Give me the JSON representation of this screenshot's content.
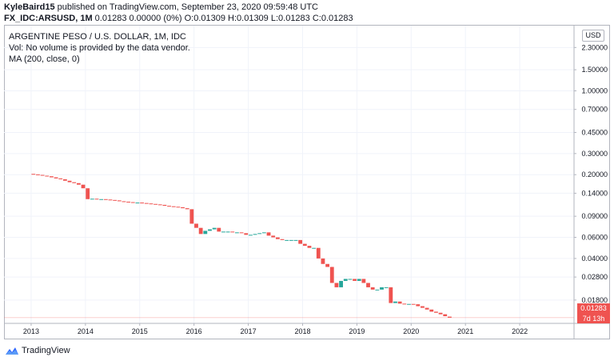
{
  "header": {
    "author": "KyleBaird15",
    "published_text": " published on TradingView.com, September 23, 2020 09:59:48 UTC",
    "symbol": "FX_IDC:ARSUSD, 1M",
    "ohlc_text": " 0.01283 0.00000 (0%) O:0.01309 H:0.01309 L:0.01283 C:0.01283"
  },
  "legend": {
    "title": "ARGENTINE PESO / U.S. DOLLAR, 1M, IDC",
    "volume_note": "Vol: No volume is provided by the data vendor.",
    "ma_label": "MA (200, close, 0)"
  },
  "price_axis": {
    "currency_badge": "USD",
    "last_price_label": "0.01283",
    "countdown_label": "7d 13h",
    "ticks": [
      "2.30000",
      "1.50000",
      "1.00000",
      "0.70000",
      "0.45000",
      "0.30000",
      "0.20000",
      "0.14000",
      "0.09000",
      "0.06000",
      "0.04000",
      "0.02800",
      "0.01800"
    ]
  },
  "time_axis": {
    "labels": [
      "2013",
      "2014",
      "2015",
      "2016",
      "2017",
      "2018",
      "2019",
      "2020",
      "2021",
      "2022"
    ]
  },
  "footer": {
    "brand": "TradingView"
  },
  "colors": {
    "up": "#26a69a",
    "down": "#ef5350",
    "grid": "#f0f3fa",
    "axis_line": "#b2b5be",
    "text": "#131722"
  },
  "chart_data": {
    "type": "candlestick",
    "title": "ARGENTINE PESO / U.S. DOLLAR, 1M, IDC",
    "scale": "log",
    "ylim": [
      0.0115,
      3.5
    ],
    "xlim": [
      "2012-07",
      "2022-12"
    ],
    "last_price": 0.01283,
    "series": [
      {
        "name": "ARSUSD",
        "candles": [
          {
            "t": "2013-01",
            "o": 0.203,
            "c": 0.201
          },
          {
            "t": "2013-02",
            "o": 0.201,
            "c": 0.199
          },
          {
            "t": "2013-03",
            "o": 0.199,
            "c": 0.196
          },
          {
            "t": "2013-04",
            "o": 0.196,
            "c": 0.194
          },
          {
            "t": "2013-05",
            "o": 0.194,
            "c": 0.19
          },
          {
            "t": "2013-06",
            "o": 0.19,
            "c": 0.186
          },
          {
            "t": "2013-07",
            "o": 0.186,
            "c": 0.183
          },
          {
            "t": "2013-08",
            "o": 0.183,
            "c": 0.178
          },
          {
            "t": "2013-09",
            "o": 0.178,
            "c": 0.173
          },
          {
            "t": "2013-10",
            "o": 0.173,
            "c": 0.17
          },
          {
            "t": "2013-11",
            "o": 0.17,
            "c": 0.165
          },
          {
            "t": "2013-12",
            "o": 0.165,
            "c": 0.154
          },
          {
            "t": "2014-01",
            "o": 0.154,
            "c": 0.125
          },
          {
            "t": "2014-02",
            "o": 0.125,
            "c": 0.126
          },
          {
            "t": "2014-03",
            "o": 0.126,
            "c": 0.125
          },
          {
            "t": "2014-04",
            "o": 0.125,
            "c": 0.125
          },
          {
            "t": "2014-05",
            "o": 0.125,
            "c": 0.124
          },
          {
            "t": "2014-06",
            "o": 0.124,
            "c": 0.123
          },
          {
            "t": "2014-07",
            "o": 0.123,
            "c": 0.122
          },
          {
            "t": "2014-08",
            "o": 0.122,
            "c": 0.12
          },
          {
            "t": "2014-09",
            "o": 0.12,
            "c": 0.119
          },
          {
            "t": "2014-10",
            "o": 0.119,
            "c": 0.118
          },
          {
            "t": "2014-11",
            "o": 0.118,
            "c": 0.117
          },
          {
            "t": "2014-12",
            "o": 0.117,
            "c": 0.117
          },
          {
            "t": "2015-01",
            "o": 0.117,
            "c": 0.116
          },
          {
            "t": "2015-02",
            "o": 0.116,
            "c": 0.115
          },
          {
            "t": "2015-03",
            "o": 0.115,
            "c": 0.114
          },
          {
            "t": "2015-04",
            "o": 0.114,
            "c": 0.113
          },
          {
            "t": "2015-05",
            "o": 0.113,
            "c": 0.112
          },
          {
            "t": "2015-06",
            "o": 0.112,
            "c": 0.11
          },
          {
            "t": "2015-07",
            "o": 0.11,
            "c": 0.109
          },
          {
            "t": "2015-08",
            "o": 0.109,
            "c": 0.108
          },
          {
            "t": "2015-09",
            "o": 0.108,
            "c": 0.107
          },
          {
            "t": "2015-10",
            "o": 0.107,
            "c": 0.105
          },
          {
            "t": "2015-11",
            "o": 0.105,
            "c": 0.103
          },
          {
            "t": "2015-12",
            "o": 0.103,
            "c": 0.078
          },
          {
            "t": "2016-01",
            "o": 0.078,
            "c": 0.072
          },
          {
            "t": "2016-02",
            "o": 0.072,
            "c": 0.064
          },
          {
            "t": "2016-03",
            "o": 0.064,
            "c": 0.068
          },
          {
            "t": "2016-04",
            "o": 0.068,
            "c": 0.07
          },
          {
            "t": "2016-05",
            "o": 0.07,
            "c": 0.072
          },
          {
            "t": "2016-06",
            "o": 0.072,
            "c": 0.067
          },
          {
            "t": "2016-07",
            "o": 0.067,
            "c": 0.067
          },
          {
            "t": "2016-08",
            "o": 0.067,
            "c": 0.067
          },
          {
            "t": "2016-09",
            "o": 0.067,
            "c": 0.066
          },
          {
            "t": "2016-10",
            "o": 0.066,
            "c": 0.066
          },
          {
            "t": "2016-11",
            "o": 0.066,
            "c": 0.065
          },
          {
            "t": "2016-12",
            "o": 0.065,
            "c": 0.063
          },
          {
            "t": "2017-01",
            "o": 0.063,
            "c": 0.063
          },
          {
            "t": "2017-02",
            "o": 0.063,
            "c": 0.064
          },
          {
            "t": "2017-03",
            "o": 0.064,
            "c": 0.065
          },
          {
            "t": "2017-04",
            "o": 0.065,
            "c": 0.066
          },
          {
            "t": "2017-05",
            "o": 0.066,
            "c": 0.062
          },
          {
            "t": "2017-06",
            "o": 0.062,
            "c": 0.06
          },
          {
            "t": "2017-07",
            "o": 0.06,
            "c": 0.058
          },
          {
            "t": "2017-08",
            "o": 0.058,
            "c": 0.057
          },
          {
            "t": "2017-09",
            "o": 0.057,
            "c": 0.057
          },
          {
            "t": "2017-10",
            "o": 0.057,
            "c": 0.057
          },
          {
            "t": "2017-11",
            "o": 0.057,
            "c": 0.057
          },
          {
            "t": "2017-12",
            "o": 0.057,
            "c": 0.053
          },
          {
            "t": "2018-01",
            "o": 0.053,
            "c": 0.051
          },
          {
            "t": "2018-02",
            "o": 0.051,
            "c": 0.049
          },
          {
            "t": "2018-03",
            "o": 0.049,
            "c": 0.049
          },
          {
            "t": "2018-04",
            "o": 0.049,
            "c": 0.04
          },
          {
            "t": "2018-05",
            "o": 0.04,
            "c": 0.036
          },
          {
            "t": "2018-06",
            "o": 0.036,
            "c": 0.034
          },
          {
            "t": "2018-07",
            "o": 0.034,
            "c": 0.025
          },
          {
            "t": "2018-08",
            "o": 0.025,
            "c": 0.023
          },
          {
            "t": "2018-09",
            "o": 0.023,
            "c": 0.026
          },
          {
            "t": "2018-10",
            "o": 0.026,
            "c": 0.027
          },
          {
            "t": "2018-11",
            "o": 0.027,
            "c": 0.027
          },
          {
            "t": "2018-12",
            "o": 0.027,
            "c": 0.026
          },
          {
            "t": "2019-01",
            "o": 0.026,
            "c": 0.027
          },
          {
            "t": "2019-02",
            "o": 0.027,
            "c": 0.025
          },
          {
            "t": "2019-03",
            "o": 0.025,
            "c": 0.023
          },
          {
            "t": "2019-04",
            "o": 0.023,
            "c": 0.022
          },
          {
            "t": "2019-05",
            "o": 0.022,
            "c": 0.022
          },
          {
            "t": "2019-06",
            "o": 0.022,
            "c": 0.023
          },
          {
            "t": "2019-07",
            "o": 0.023,
            "c": 0.023
          },
          {
            "t": "2019-08",
            "o": 0.023,
            "c": 0.017
          },
          {
            "t": "2019-09",
            "o": 0.017,
            "c": 0.0175
          },
          {
            "t": "2019-10",
            "o": 0.0175,
            "c": 0.0168
          },
          {
            "t": "2019-11",
            "o": 0.0168,
            "c": 0.0167
          },
          {
            "t": "2019-12",
            "o": 0.0167,
            "c": 0.0167
          },
          {
            "t": "2020-01",
            "o": 0.0167,
            "c": 0.0166
          },
          {
            "t": "2020-02",
            "o": 0.0166,
            "c": 0.016
          },
          {
            "t": "2020-03",
            "o": 0.016,
            "c": 0.0155
          },
          {
            "t": "2020-04",
            "o": 0.0155,
            "c": 0.015
          },
          {
            "t": "2020-05",
            "o": 0.015,
            "c": 0.0144
          },
          {
            "t": "2020-06",
            "o": 0.0144,
            "c": 0.0141
          },
          {
            "t": "2020-07",
            "o": 0.0141,
            "c": 0.0137
          },
          {
            "t": "2020-08",
            "o": 0.0137,
            "c": 0.0132
          },
          {
            "t": "2020-09",
            "o": 0.01309,
            "c": 0.01283
          }
        ]
      }
    ]
  }
}
